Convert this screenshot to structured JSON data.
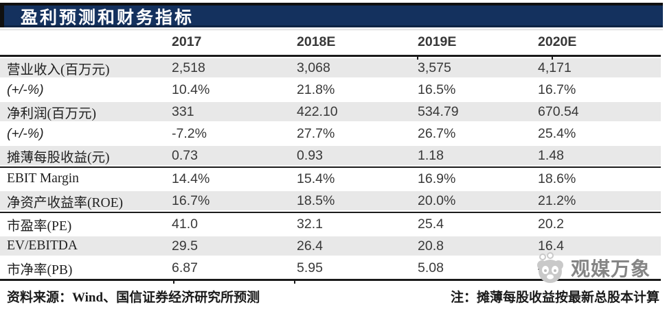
{
  "title": "盈利预测和财务指标",
  "table": {
    "columns": [
      "2017",
      "2018E",
      "2019E",
      "2020E"
    ],
    "rows": [
      {
        "label": "营业收入(百万元)",
        "values": [
          "2,518",
          "3,068",
          "3,575",
          "4,171"
        ]
      },
      {
        "label": "(+/-%)",
        "values": [
          "10.4%",
          "21.8%",
          "16.5%",
          "16.7%"
        ],
        "italic": true
      },
      {
        "label": "净利润(百万元)",
        "values": [
          "331",
          "422.10",
          "534.79",
          "670.54"
        ]
      },
      {
        "label": "(+/-%)",
        "values": [
          "-7.2%",
          "27.7%",
          "26.7%",
          "25.4%"
        ],
        "italic": true
      },
      {
        "label": "摊薄每股收益(元)",
        "values": [
          "0.73",
          "0.93",
          "1.18",
          "1.48"
        ],
        "section_end": true
      },
      {
        "label": "EBIT Margin",
        "values": [
          "14.4%",
          "15.4%",
          "16.9%",
          "18.6%"
        ]
      },
      {
        "label": "净资产收益率(ROE)",
        "values": [
          "16.7%",
          "18.5%",
          "20.0%",
          "21.2%"
        ],
        "section_end": true
      },
      {
        "label": "市盈率(PE)",
        "values": [
          "41.0",
          "32.1",
          "25.4",
          "20.2"
        ]
      },
      {
        "label": "EV/EBITDA",
        "values": [
          "29.5",
          "26.4",
          "20.8",
          "16.4"
        ]
      },
      {
        "label": "市净率(PB)",
        "values": [
          "6.87",
          "5.95",
          "5.08",
          "4."
        ]
      }
    ]
  },
  "footer": {
    "source": "资料来源：Wind、国信证券经济研究所预测",
    "note": "注：摊薄每股收益按最新总股本计算"
  },
  "watermark": {
    "text": "观媒万象"
  },
  "colors": {
    "title_bar": "#14315e",
    "title_text": "#ffffff",
    "row_shade": "#e8e8e8",
    "rule": "#1a1a1a",
    "watermark_gray": "#c9c9c9"
  }
}
